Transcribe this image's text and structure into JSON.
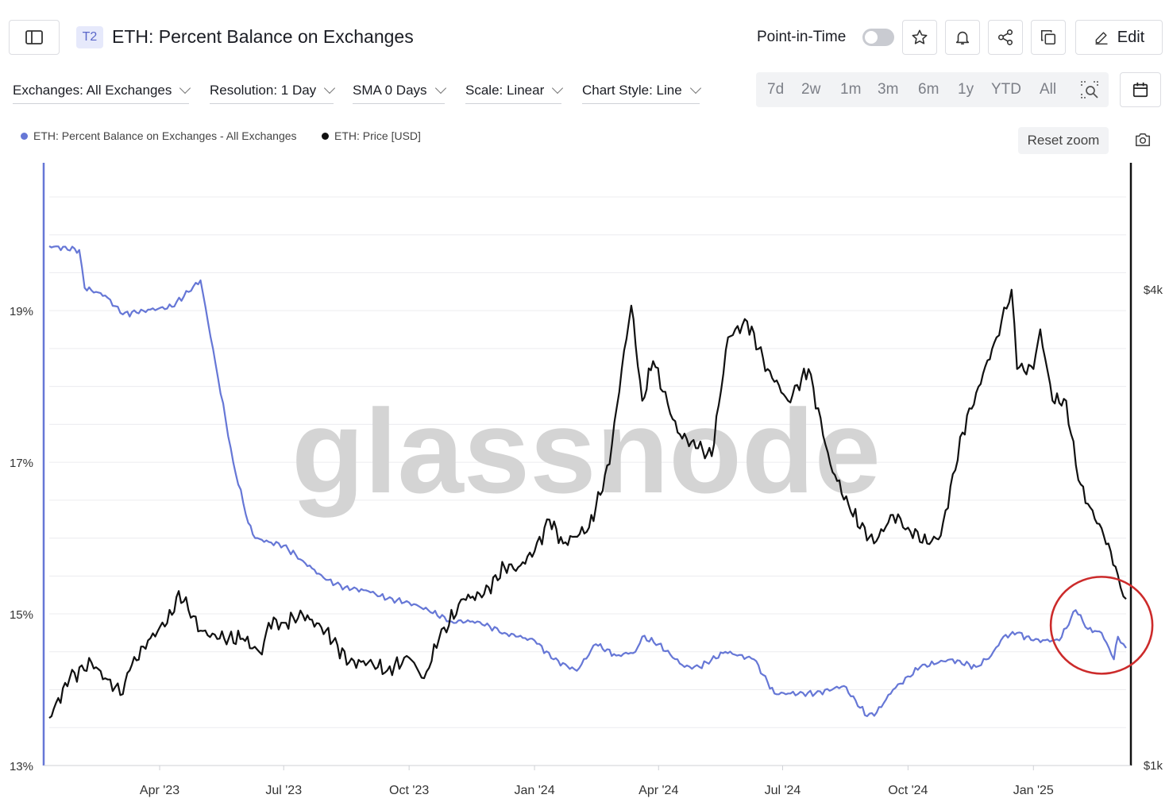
{
  "header": {
    "badge": "T2",
    "title": "ETH: Percent Balance on Exchanges",
    "point_in_time_label": "Point-in-Time",
    "point_in_time_on": false,
    "edit_label": "Edit",
    "icons": [
      "sidebar-icon",
      "star-icon",
      "bell-icon",
      "share-icon",
      "copy-icon",
      "pencil-icon"
    ]
  },
  "filters": [
    {
      "label": "Exchanges: All Exchanges"
    },
    {
      "label": "Resolution: 1 Day"
    },
    {
      "label": "SMA 0 Days"
    },
    {
      "label": "Scale: Linear"
    },
    {
      "label": "Chart Style: Line"
    }
  ],
  "ranges": [
    "7d",
    "2w",
    "1m",
    "3m",
    "6m",
    "1y",
    "YTD",
    "All"
  ],
  "reset_zoom_label": "Reset zoom",
  "watermark": "glassnode",
  "colors": {
    "balance": "#6677d6",
    "price": "#111111",
    "highlight": "#cc2b2b",
    "left_axis": "#6677d6"
  },
  "chart_data": {
    "type": "line",
    "legend": [
      {
        "name": "ETH: Percent Balance on Exchanges - All Exchanges",
        "color": "#6677d6"
      },
      {
        "name": "ETH: Price [USD]",
        "color": "#111111"
      }
    ],
    "x_ticks": [
      "Apr '23",
      "Jul '23",
      "Oct '23",
      "Jan '24",
      "Apr '24",
      "Jul '24",
      "Oct '24",
      "Jan '25"
    ],
    "x_tick_dates": [
      "2023-04-01",
      "2023-07-01",
      "2023-10-01",
      "2024-01-01",
      "2024-04-01",
      "2024-07-01",
      "2024-10-01",
      "2025-01-01"
    ],
    "xlim": [
      "2023-01-10",
      "2025-03-10"
    ],
    "left_axis": {
      "ticks": [
        "13%",
        "15%",
        "17%",
        "19%"
      ],
      "tick_values": [
        13,
        15,
        17,
        19
      ],
      "ylim": [
        13,
        20.95
      ]
    },
    "right_axis": {
      "ticks": [
        "$1k",
        "$4k"
      ],
      "tick_values": [
        1000,
        4000
      ],
      "ylim": [
        1000,
        4800
      ]
    },
    "grid": true,
    "series": [
      {
        "name": "ETH: Percent Balance on Exchanges - All Exchanges",
        "axis": "left",
        "x": [
          "2023-01-10",
          "2023-02-01",
          "2023-02-05",
          "2023-02-20",
          "2023-03-05",
          "2023-03-20",
          "2023-04-10",
          "2023-05-01",
          "2023-05-12",
          "2023-05-25",
          "2023-06-05",
          "2023-06-10",
          "2023-06-20",
          "2023-07-01",
          "2023-07-15",
          "2023-08-01",
          "2023-08-15",
          "2023-09-01",
          "2023-09-15",
          "2023-10-01",
          "2023-10-15",
          "2023-11-01",
          "2023-11-20",
          "2023-12-10",
          "2023-12-20",
          "2024-01-01",
          "2024-01-15",
          "2024-02-01",
          "2024-02-15",
          "2024-03-01",
          "2024-03-15",
          "2024-03-20",
          "2024-04-01",
          "2024-04-20",
          "2024-05-01",
          "2024-05-20",
          "2024-06-10",
          "2024-06-25",
          "2024-07-05",
          "2024-07-25",
          "2024-08-15",
          "2024-09-01",
          "2024-09-08",
          "2024-09-20",
          "2024-10-10",
          "2024-11-01",
          "2024-11-20",
          "2024-12-01",
          "2024-12-10",
          "2024-12-20",
          "2025-01-01",
          "2025-01-20",
          "2025-02-01",
          "2025-02-10",
          "2025-02-20",
          "2025-03-01",
          "2025-03-04",
          "2025-03-10"
        ],
        "values": [
          19.85,
          19.8,
          19.3,
          19.2,
          18.95,
          19.0,
          19.05,
          19.4,
          18.3,
          17.0,
          16.2,
          16.0,
          15.95,
          15.9,
          15.7,
          15.45,
          15.35,
          15.3,
          15.2,
          15.15,
          15.05,
          14.9,
          14.9,
          14.75,
          14.7,
          14.65,
          14.4,
          14.25,
          14.6,
          14.45,
          14.5,
          14.7,
          14.6,
          14.3,
          14.3,
          14.5,
          14.4,
          13.95,
          13.95,
          13.95,
          14.05,
          13.65,
          13.7,
          14.0,
          14.3,
          14.4,
          14.3,
          14.45,
          14.7,
          14.75,
          14.65,
          14.65,
          15.05,
          14.8,
          14.75,
          14.4,
          14.7,
          14.55
        ]
      },
      {
        "name": "ETH: Price [USD]",
        "axis": "right",
        "x": [
          "2023-01-10",
          "2023-01-25",
          "2023-02-10",
          "2023-02-20",
          "2023-03-05",
          "2023-03-10",
          "2023-03-20",
          "2023-04-10",
          "2023-04-15",
          "2023-05-01",
          "2023-05-15",
          "2023-06-01",
          "2023-06-15",
          "2023-06-20",
          "2023-07-01",
          "2023-07-15",
          "2023-08-01",
          "2023-08-18",
          "2023-09-01",
          "2023-09-15",
          "2023-10-01",
          "2023-10-12",
          "2023-10-23",
          "2023-11-10",
          "2023-11-25",
          "2023-12-10",
          "2023-12-20",
          "2024-01-01",
          "2024-01-12",
          "2024-01-22",
          "2024-02-10",
          "2024-02-25",
          "2024-03-05",
          "2024-03-12",
          "2024-03-20",
          "2024-03-28",
          "2024-04-15",
          "2024-04-30",
          "2024-05-10",
          "2024-05-22",
          "2024-06-05",
          "2024-06-20",
          "2024-07-05",
          "2024-07-20",
          "2024-08-05",
          "2024-08-20",
          "2024-09-06",
          "2024-09-20",
          "2024-10-01",
          "2024-10-15",
          "2024-10-25",
          "2024-11-10",
          "2024-11-20",
          "2024-12-05",
          "2024-12-16",
          "2024-12-20",
          "2025-01-01",
          "2025-01-06",
          "2025-01-15",
          "2025-01-25",
          "2025-02-03",
          "2025-02-10",
          "2025-02-25",
          "2025-03-04",
          "2025-03-10"
        ],
        "values": [
          1300,
          1550,
          1650,
          1550,
          1450,
          1600,
          1750,
          1950,
          2100,
          1850,
          1800,
          1800,
          1700,
          1900,
          1900,
          1950,
          1850,
          1650,
          1650,
          1600,
          1680,
          1550,
          1800,
          2050,
          2080,
          2250,
          2250,
          2350,
          2550,
          2400,
          2500,
          2900,
          3500,
          3900,
          3300,
          3550,
          3100,
          3000,
          2950,
          3700,
          3800,
          3500,
          3300,
          3500,
          2900,
          2600,
          2400,
          2580,
          2500,
          2400,
          2450,
          3100,
          3350,
          3700,
          4000,
          3500,
          3500,
          3750,
          3300,
          3300,
          2800,
          2650,
          2400,
          2200,
          2050
        ]
      }
    ],
    "annotations": [
      {
        "type": "circle",
        "date": "2025-02-20",
        "value": 14.85,
        "color": "#cc2b2b"
      }
    ]
  }
}
